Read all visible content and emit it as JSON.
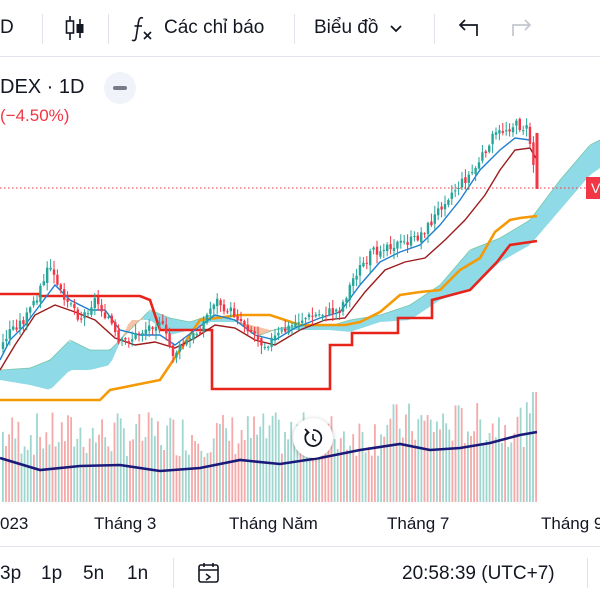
{
  "toolbar": {
    "interval_label": "D",
    "indicators_label": "Các chỉ báo",
    "chart_type_label": "Biểu đồ"
  },
  "legend": {
    "symbol": "DEX · 1D",
    "change": "(−4.50%)"
  },
  "price_tag": {
    "text": "V",
    "color": "#f23645"
  },
  "time_axis": {
    "labels": [
      "023",
      "Tháng 3",
      "Tháng Năm",
      "Tháng 7",
      "Tháng 9"
    ]
  },
  "bottom_bar": {
    "ranges": [
      "3p",
      "1p",
      "5n",
      "1n"
    ],
    "clock": "20:58:39 (UTC+7)"
  },
  "colors": {
    "up": "#26a69a",
    "down": "#f23645",
    "kijun": "#e8231a",
    "senkou_b": "#f59a06",
    "tenkan": "#1f7fd1",
    "chikou_line": "#9c1b1b",
    "volume_ma": "#1a1a7a",
    "cloud_bull": "#7ad3e2",
    "cloud_bear": "#f4b99a"
  },
  "icons": {
    "candles": "candlestick-icon",
    "indicators": "fx-icon",
    "chevron": "chevron-down-icon",
    "undo": "undo-icon",
    "redo": "redo-icon",
    "reset": "reset-icon",
    "calendar": "calendar-range-icon"
  }
}
